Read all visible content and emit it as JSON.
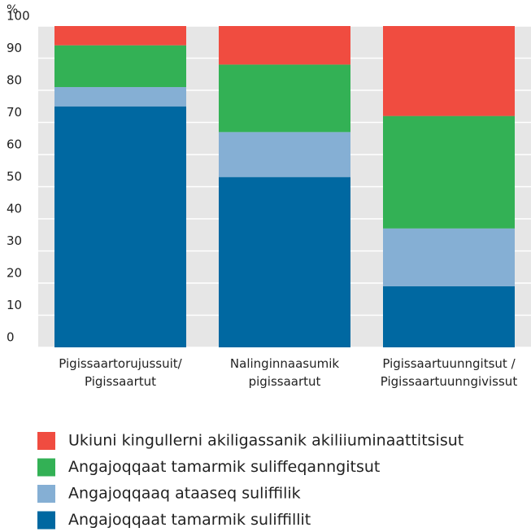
{
  "chart_data": {
    "type": "stacked_bar",
    "y_label": "%",
    "categories": [
      "Pigissaartorujussuit/\nPigissaartut",
      "Nalinginnaasumik\npigissaartut",
      "Pigissaartuunngitsut /\nPigissaartuunngivissut"
    ],
    "series": [
      {
        "name": "Angajoqqaat tamarmik suliffillit",
        "color": "#0068a1",
        "values": [
          75,
          53,
          19
        ]
      },
      {
        "name": "Angajoqqaaq ataaseq suliffilik",
        "color": "#85afd4",
        "values": [
          6,
          14,
          18
        ]
      },
      {
        "name": "Angajoqqaat tamarmik suliffeqanngitsut",
        "color": "#33b155",
        "values": [
          13,
          21,
          35
        ]
      },
      {
        "name": "Ukiuni kingullerni akiligassanik akiliiuminaattitsisut",
        "color": "#f04c40",
        "values": [
          6,
          12,
          28
        ]
      }
    ],
    "ylim": [
      0,
      100
    ],
    "yticks": [
      0,
      10,
      20,
      30,
      40,
      50,
      60,
      70,
      80,
      90,
      100
    ],
    "grid": true
  }
}
